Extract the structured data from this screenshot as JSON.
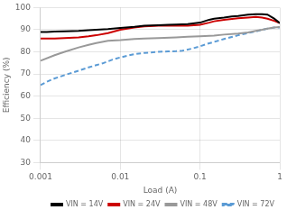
{
  "chart_data": {
    "type": "line",
    "x_label": "Load (A)",
    "y_label": "Efficiency (%)",
    "log": "x",
    "xlim": [
      0.001,
      1.0
    ],
    "xticks": [
      0.001,
      0.01,
      0.1,
      1
    ],
    "ylim": [
      30,
      100
    ],
    "yticks": [
      30,
      40,
      50,
      60,
      70,
      80,
      90,
      100
    ],
    "grid": true,
    "legend": "lower right",
    "series": [
      {
        "name": "VIN = 14V",
        "color": "#000000",
        "line_style": "solid",
        "x": [
          0.001,
          0.0012,
          0.0015,
          0.002,
          0.0025,
          0.003,
          0.004,
          0.005,
          0.007,
          0.01,
          0.015,
          0.02,
          0.03,
          0.04,
          0.05,
          0.07,
          0.1,
          0.13,
          0.15,
          0.2,
          0.25,
          0.3,
          0.4,
          0.5,
          0.6,
          0.7,
          0.85,
          1.0
        ],
        "values": [
          89.0,
          89.0,
          89.2,
          89.3,
          89.4,
          89.5,
          89.8,
          90.0,
          90.3,
          90.8,
          91.3,
          91.8,
          92.0,
          92.2,
          92.3,
          92.5,
          93.2,
          94.5,
          95.0,
          95.5,
          96.0,
          96.2,
          96.8,
          97.0,
          97.0,
          96.8,
          95.0,
          93.0
        ]
      },
      {
        "name": "VIN = 24V",
        "color": "#CC0000",
        "line_style": "solid",
        "x": [
          0.001,
          0.0012,
          0.0015,
          0.002,
          0.003,
          0.004,
          0.005,
          0.007,
          0.01,
          0.015,
          0.02,
          0.03,
          0.04,
          0.05,
          0.07,
          0.1,
          0.13,
          0.15,
          0.2,
          0.3,
          0.4,
          0.5,
          0.6,
          0.7,
          0.85,
          1.0
        ],
        "values": [
          86.0,
          86.0,
          86.0,
          86.2,
          86.5,
          87.0,
          87.5,
          88.5,
          90.0,
          91.0,
          91.5,
          91.8,
          91.8,
          91.8,
          91.8,
          92.2,
          93.2,
          93.8,
          94.5,
          95.2,
          95.5,
          95.8,
          95.5,
          95.0,
          94.0,
          93.0
        ]
      },
      {
        "name": "VIN = 48V",
        "color": "#999999",
        "line_style": "solid",
        "x": [
          0.001,
          0.0015,
          0.002,
          0.003,
          0.004,
          0.005,
          0.007,
          0.01,
          0.015,
          0.02,
          0.03,
          0.05,
          0.07,
          0.1,
          0.15,
          0.2,
          0.3,
          0.4,
          0.5,
          0.6,
          0.7,
          0.85,
          1.0
        ],
        "values": [
          76.0,
          78.5,
          80.0,
          82.0,
          83.2,
          84.0,
          85.0,
          85.3,
          85.8,
          86.0,
          86.2,
          86.5,
          86.8,
          87.0,
          87.3,
          87.8,
          88.3,
          88.8,
          89.5,
          90.0,
          90.5,
          91.0,
          91.2
        ]
      },
      {
        "name": "VIN = 72V",
        "color": "#5B9BD5",
        "line_style": "dashed",
        "x": [
          0.001,
          0.0012,
          0.0015,
          0.002,
          0.003,
          0.004,
          0.005,
          0.006,
          0.008,
          0.01,
          0.015,
          0.02,
          0.03,
          0.04,
          0.05,
          0.06,
          0.08,
          0.1,
          0.12,
          0.15,
          0.2,
          0.3,
          0.4,
          0.5,
          0.6,
          0.7,
          0.85,
          1.0
        ],
        "values": [
          65.0,
          66.5,
          68.0,
          69.5,
          71.5,
          73.0,
          74.0,
          74.8,
          76.5,
          77.5,
          79.0,
          79.5,
          80.0,
          80.2,
          80.3,
          80.5,
          81.5,
          82.5,
          83.5,
          84.5,
          85.8,
          87.5,
          88.5,
          89.2,
          90.0,
          90.5,
          91.0,
          91.0
        ]
      }
    ]
  }
}
